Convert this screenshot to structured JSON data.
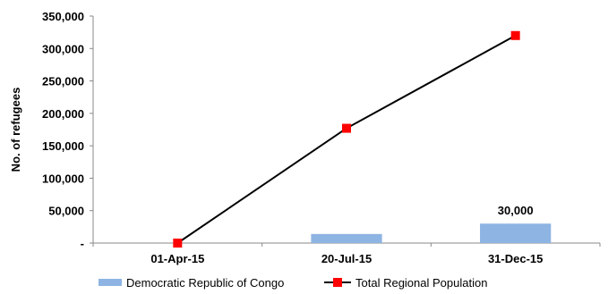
{
  "chart_data": {
    "type": "bar",
    "categories": [
      "01-Apr-15",
      "20-Jul-15",
      "31-Dec-15"
    ],
    "series": [
      {
        "name": "Democratic Republic of Congo",
        "kind": "bar",
        "values": [
          0,
          14000,
          30000
        ],
        "color": "#8EB4E3"
      },
      {
        "name": "Total Regional Population",
        "kind": "line",
        "values": [
          0,
          177000,
          320000
        ],
        "color": "#000000",
        "marker_color": "#FF0000"
      }
    ],
    "data_labels": [
      {
        "series": 0,
        "category": "31-Dec-15",
        "text": "30,000"
      }
    ],
    "ylabel": "No. of refugees",
    "ylim": [
      0,
      350000
    ],
    "yticks": [
      0,
      50000,
      100000,
      150000,
      200000,
      250000,
      300000,
      350000
    ],
    "ytick_labels": [
      "-",
      "50,000",
      "100,000",
      "150,000",
      "200,000",
      "250,000",
      "300,000",
      "350,000"
    ],
    "grid": false,
    "legend": "bottom"
  }
}
